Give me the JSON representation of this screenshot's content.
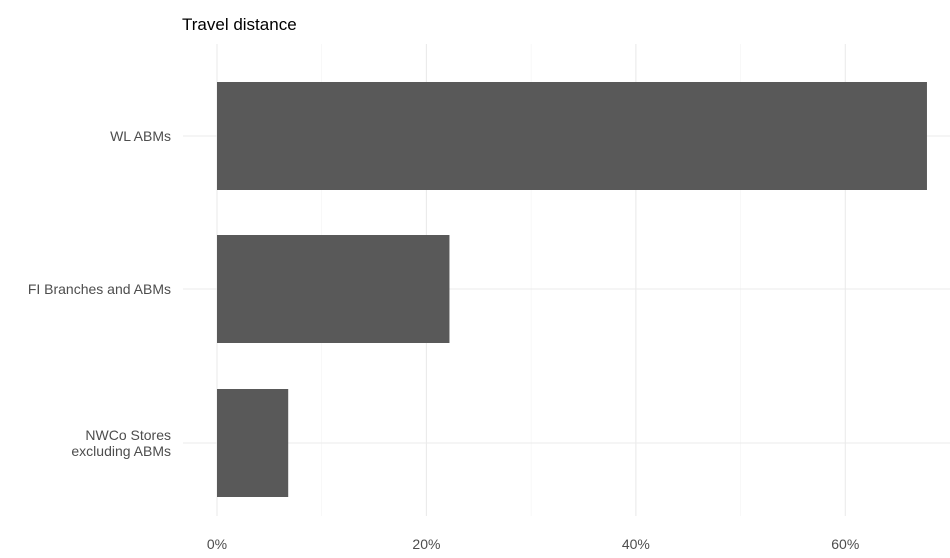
{
  "chart_data": {
    "type": "bar",
    "orientation": "horizontal",
    "title": "Travel distance",
    "xlabel": "",
    "ylabel": "",
    "categories": [
      [
        "WL ABMs"
      ],
      [
        "FI Branches and ABMs"
      ],
      [
        "NWCo Stores",
        "excluding ABMs"
      ]
    ],
    "values": [
      0.678,
      0.222,
      0.068
    ],
    "xlim": [
      0,
      0.7
    ],
    "xticks": [
      0,
      0.2,
      0.4,
      0.6
    ],
    "xtick_labels": [
      "0%",
      "20%",
      "40%",
      "60%"
    ],
    "minor_xticks": [
      0.1,
      0.3,
      0.5
    ],
    "bar_color": "#595959",
    "grid": true,
    "legend": "none"
  }
}
